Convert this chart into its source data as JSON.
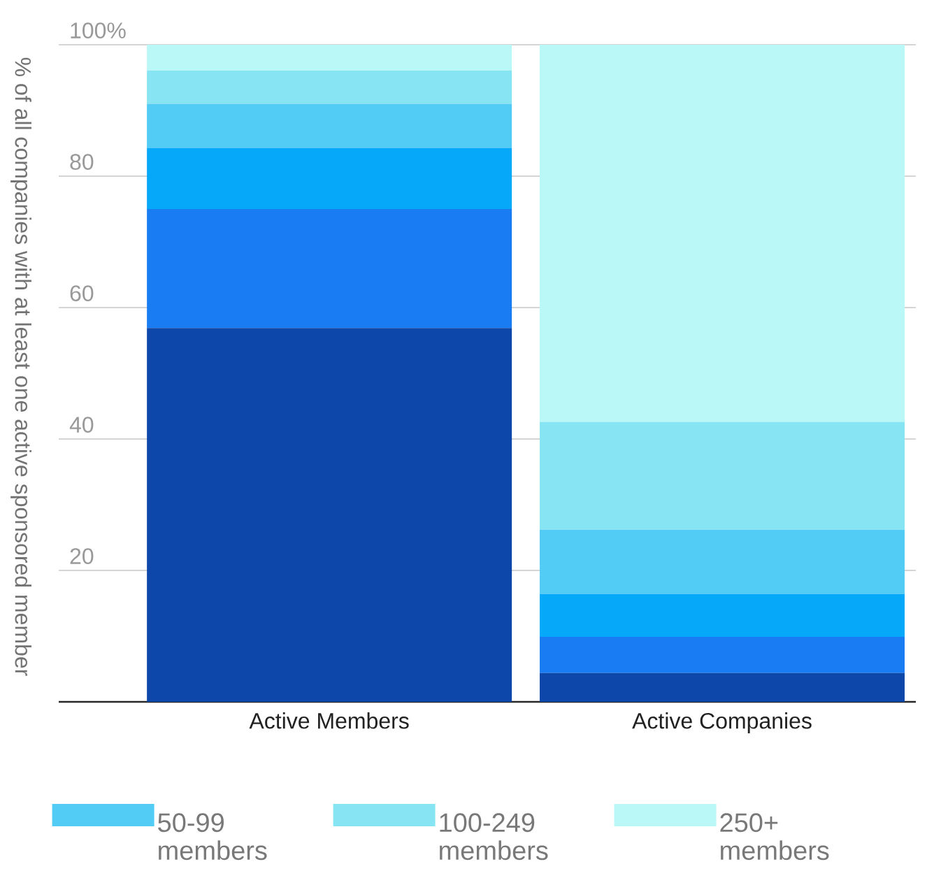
{
  "chart_data": {
    "type": "bar",
    "stacked": true,
    "ylabel": "% of all companies with at least one active sponsored member",
    "categories": [
      "Active Members",
      "Active Companies"
    ],
    "series": [
      {
        "color": "#0d47a9",
        "values": [
          56.9,
          4.4
        ]
      },
      {
        "color": "#1a7cf2",
        "values": [
          18.1,
          5.5
        ]
      },
      {
        "color": "#06a8fa",
        "values": [
          9.3,
          6.5
        ]
      },
      {
        "name": "50-99 members",
        "color": "#52cbf5",
        "values": [
          6.7,
          9.8
        ]
      },
      {
        "name": "100-249 members",
        "color": "#87e5f3",
        "values": [
          5.1,
          16.4
        ]
      },
      {
        "name": "250+ members",
        "color": "#baf7f7",
        "values": [
          3.9,
          57.4
        ]
      }
    ],
    "ylim": [
      0,
      100
    ],
    "yticks": [
      {
        "value": 0,
        "label": null
      },
      20,
      40,
      60,
      80,
      {
        "value": 100,
        "label": "100%"
      }
    ],
    "grid": "y",
    "legend": "bottom"
  }
}
